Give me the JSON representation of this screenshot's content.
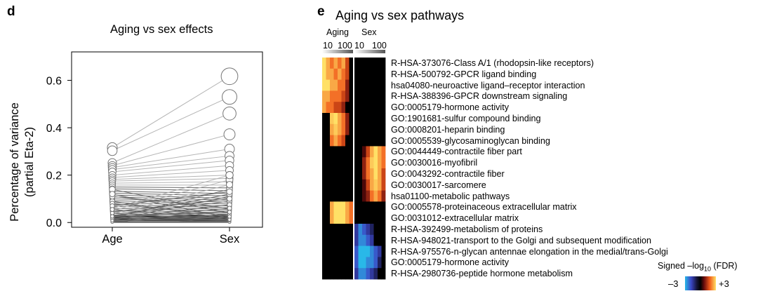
{
  "panels": {
    "d": {
      "letter": "d",
      "chart_data": {
        "type": "scatter",
        "title": "Aging vs sex effects",
        "xlabel": "",
        "ylabel": "Percentage of variance (partial Eta-2)",
        "ylabel_line1": "Percentage of variance",
        "ylabel_line2": "(partial Eta-2)",
        "categories": [
          "Age",
          "Sex"
        ],
        "ylim": [
          -0.02,
          0.72
        ],
        "yticks": [
          "0.0",
          "0.2",
          "0.4",
          "0.6"
        ],
        "ytick_values": [
          0.0,
          0.2,
          0.4,
          0.6
        ],
        "grid": false,
        "paired_points": [
          [
            0.316,
            0.617
          ],
          [
            0.303,
            0.53
          ],
          [
            0.252,
            0.46
          ],
          [
            0.24,
            0.372
          ],
          [
            0.232,
            0.31
          ],
          [
            0.224,
            0.281
          ],
          [
            0.214,
            0.262
          ],
          [
            0.2,
            0.24
          ],
          [
            0.19,
            0.22
          ],
          [
            0.182,
            0.2
          ],
          [
            0.175,
            0.186
          ],
          [
            0.166,
            0.172
          ],
          [
            0.158,
            0.158
          ],
          [
            0.15,
            0.146
          ],
          [
            0.142,
            0.134
          ],
          [
            0.132,
            0.122
          ],
          [
            0.124,
            0.112
          ],
          [
            0.116,
            0.102
          ],
          [
            0.108,
            0.094
          ],
          [
            0.1,
            0.086
          ],
          [
            0.092,
            0.078
          ],
          [
            0.084,
            0.07
          ],
          [
            0.076,
            0.062
          ],
          [
            0.068,
            0.055
          ],
          [
            0.06,
            0.048
          ],
          [
            0.052,
            0.041
          ],
          [
            0.045,
            0.035
          ],
          [
            0.038,
            0.029
          ],
          [
            0.031,
            0.023
          ],
          [
            0.024,
            0.018
          ],
          [
            0.018,
            0.013
          ],
          [
            0.012,
            0.009
          ],
          [
            0.007,
            0.005
          ],
          [
            0.003,
            0.002
          ],
          [
            0.02,
            0.14
          ],
          [
            0.01,
            0.11
          ],
          [
            0.05,
            0.18
          ],
          [
            0.09,
            0.015
          ],
          [
            0.14,
            0.04
          ],
          [
            0.03,
            0.09
          ],
          [
            0.06,
            0.2
          ],
          [
            0.11,
            0.06
          ],
          [
            0.025,
            0.12
          ],
          [
            0.015,
            0.075
          ],
          [
            0.08,
            0.03
          ],
          [
            0.035,
            0.16
          ],
          [
            0.005,
            0.05
          ],
          [
            0.045,
            0.1
          ],
          [
            0.12,
            0.02
          ],
          [
            0.07,
            0.13
          ],
          [
            0.002,
            0.035
          ],
          [
            0.015,
            0.06
          ],
          [
            0.04,
            0.008
          ],
          [
            0.008,
            0.025
          ],
          [
            0.026,
            0.044
          ],
          [
            0.055,
            0.012
          ]
        ]
      }
    },
    "e": {
      "letter": "e",
      "chart_data": {
        "type": "heatmap",
        "title": "Aging vs sex pathways",
        "column_groups": [
          {
            "name": "Aging",
            "scale_labels": [
              "10",
              "100"
            ],
            "n_cols": 8
          },
          {
            "name": "Sex",
            "scale_labels": [
              "10",
              "100"
            ],
            "n_cols": 8
          }
        ],
        "rows": [
          "R-HSA-373076-Class A/1 (rhodopsin-like receptors)",
          "R-HSA-500792-GPCR ligand binding",
          "hsa04080-neuroactive ligand–receptor interaction",
          "R-HSA-388396-GPCR downstream signaling",
          "GO:0005179-hormone activity",
          "GO:1901681-sulfur compound binding",
          "GO:0008201-heparin binding",
          "GO:0005539-glycosaminoglycan binding",
          "GO:0044449-contractile fiber part",
          "GO:0030016-myofibril",
          "GO:0043292-contractile fiber",
          "GO:0030017-sarcomere",
          "hsa01100-metabolic pathways",
          "GO:0005578-proteinaceous extracellular matrix",
          "GO:0031012-extracellular matrix",
          "R-HSA-392499-metabolism of proteins",
          "R-HSA-948021-transport to the Golgi and subsequent modification",
          "R-HSA-975576-n-glycan antennae elongation in the medial/trans-Golgi",
          "GO:0005179-hormone activity",
          "R-HSA-2980736-peptide hormone metabolism"
        ],
        "values": {
          "aging": [
            [
              3,
              2.5,
              2,
              2.5,
              2,
              2.5,
              1.5,
              0
            ],
            [
              3,
              2.5,
              2.5,
              2,
              2.5,
              2,
              1.5,
              0
            ],
            [
              3,
              3,
              2.5,
              2.5,
              2,
              2,
              1,
              0
            ],
            [
              2.5,
              2.5,
              2,
              2,
              2,
              1.5,
              1,
              0
            ],
            [
              2.5,
              2,
              2,
              1.5,
              1.5,
              1,
              0,
              0
            ],
            [
              0,
              0,
              2.8,
              3,
              2.5,
              2,
              1,
              0
            ],
            [
              0,
              0,
              2.5,
              2.8,
              2.5,
              2,
              1,
              0
            ],
            [
              0,
              0,
              2,
              2.5,
              2,
              1.5,
              0,
              0
            ],
            [
              0,
              0,
              0,
              0,
              0,
              0,
              0,
              0
            ],
            [
              0,
              0,
              0,
              0,
              0,
              0,
              0,
              0
            ],
            [
              0,
              0,
              0,
              0,
              0,
              0,
              0,
              0
            ],
            [
              0,
              0,
              0,
              0,
              0,
              0,
              0,
              0
            ],
            [
              0,
              0,
              0,
              0,
              0,
              0,
              0,
              0
            ],
            [
              0,
              0,
              2.5,
              3,
              3,
              3,
              2.5,
              2
            ],
            [
              0,
              0,
              2.5,
              3,
              3,
              3,
              2.5,
              2
            ],
            [
              0,
              0,
              0,
              0,
              0,
              0,
              0,
              0
            ],
            [
              0,
              0,
              0,
              0,
              0,
              0,
              0,
              0
            ],
            [
              0,
              0,
              0,
              0,
              0,
              0,
              0,
              0
            ],
            [
              0,
              0,
              0,
              0,
              0,
              0,
              0,
              0
            ],
            [
              0,
              0,
              0,
              0,
              0,
              0,
              0,
              0
            ]
          ],
          "sex": [
            [
              0,
              0,
              0,
              0,
              0,
              0,
              0,
              0
            ],
            [
              0,
              0,
              0,
              0,
              0,
              0,
              0,
              0
            ],
            [
              0,
              0,
              0,
              0,
              0,
              0,
              0,
              0
            ],
            [
              0,
              0,
              0,
              0,
              0,
              0,
              0,
              0
            ],
            [
              0,
              0,
              0,
              0,
              0,
              0,
              0,
              0
            ],
            [
              0,
              0,
              0,
              0,
              0,
              0,
              0,
              0
            ],
            [
              0,
              0,
              0,
              0,
              0,
              0,
              0,
              0
            ],
            [
              0,
              0,
              0,
              0,
              0,
              0,
              0,
              0
            ],
            [
              0,
              0,
              0.5,
              1.5,
              2.5,
              3,
              2.5,
              2
            ],
            [
              0,
              0,
              1,
              2,
              2.8,
              3,
              2.5,
              2
            ],
            [
              0,
              0,
              1,
              2,
              2.5,
              3,
              2.5,
              1.5
            ],
            [
              0,
              0,
              0.5,
              1.5,
              2.5,
              2.8,
              2.5,
              1.5
            ],
            [
              0,
              0,
              0.5,
              1,
              2,
              2.5,
              2,
              1
            ],
            [
              0,
              0,
              0,
              0,
              0,
              0,
              0,
              0
            ],
            [
              0,
              0,
              0,
              0,
              0,
              0,
              0,
              0
            ],
            [
              -1.5,
              -2.5,
              -2,
              -1.5,
              -1,
              0,
              0,
              0
            ],
            [
              -1.5,
              -2.5,
              -2.5,
              -2,
              -1.5,
              0,
              0,
              0
            ],
            [
              -2,
              -3,
              -3,
              -3,
              -2.5,
              -2,
              -1.5,
              0
            ],
            [
              -2,
              -3,
              -3,
              -2.5,
              -2.5,
              -2,
              -1,
              0
            ],
            [
              -1.5,
              -2.5,
              -2.5,
              -2,
              -1.5,
              -1,
              0,
              0
            ]
          ]
        },
        "colorbar": {
          "label_prefix": "Signed –log",
          "label_sub": "10",
          "label_suffix": " (FDR)",
          "min_label": "–3",
          "max_label": "+3",
          "range": [
            -3,
            3
          ]
        }
      }
    }
  }
}
